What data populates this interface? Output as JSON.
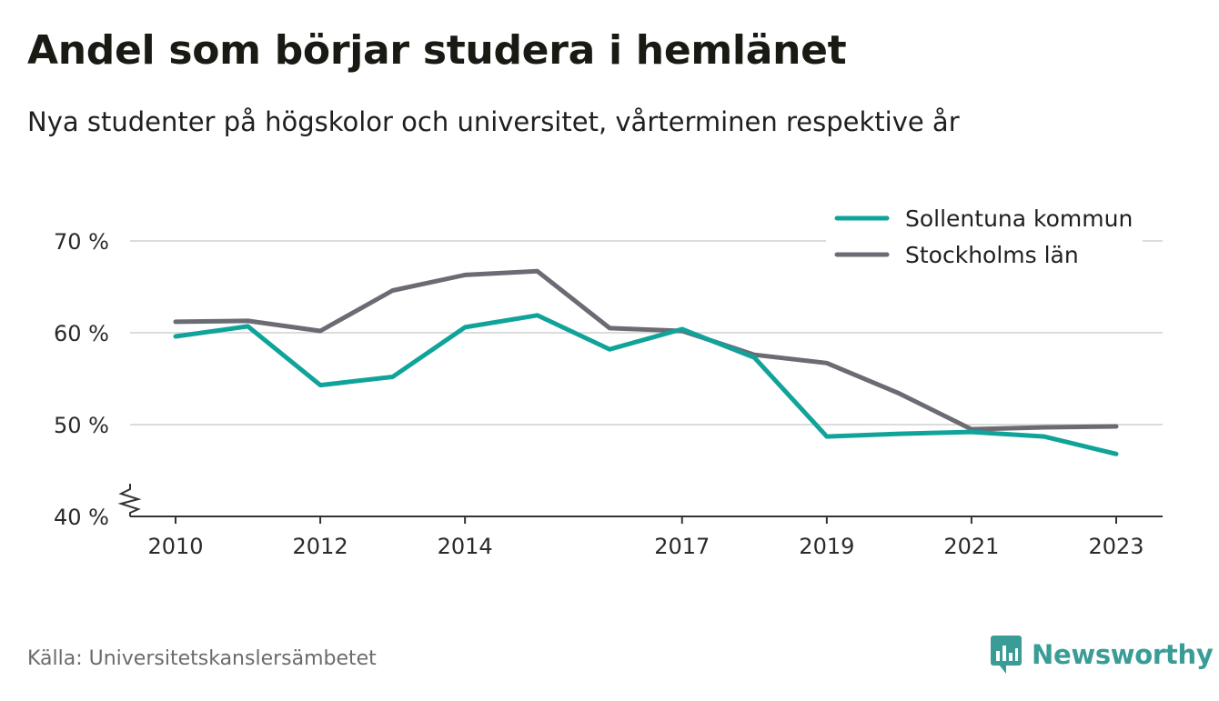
{
  "header": {
    "title": "Andel som börjar studera i hemlänet",
    "subtitle": "Nya studenter på högskolor och universitet, vårterminen respektive år"
  },
  "footer": {
    "source": "Källa: Universitetskanslersämbetet",
    "brand": "Newsworthy"
  },
  "colors": {
    "sollentuna": "#10a39a",
    "stockholm": "#6b6b73",
    "grid": "#dcdcdc",
    "axis": "#333333",
    "brand": "#3a9c96"
  },
  "chart_data": {
    "type": "line",
    "x": [
      2010,
      2011,
      2012,
      2013,
      2014,
      2015,
      2016,
      2017,
      2018,
      2019,
      2020,
      2021,
      2022,
      2023
    ],
    "xticks": [
      2010,
      2012,
      2014,
      2017,
      2019,
      2021,
      2023
    ],
    "xtick_labels": [
      "2010",
      "2012",
      "2014",
      "2017",
      "2019",
      "2021",
      "2023"
    ],
    "yticks": [
      40,
      50,
      60,
      70
    ],
    "ytick_labels": [
      "40 %",
      "50 %",
      "60 %",
      "70 %"
    ],
    "ylim": [
      40,
      70
    ],
    "y_axis_break": true,
    "grid": "horizontal",
    "legend_position": "top-right",
    "series": [
      {
        "name": "Sollentuna kommun",
        "color": "#10a39a",
        "values": [
          59.6,
          60.7,
          54.3,
          55.2,
          60.6,
          61.9,
          58.2,
          60.4,
          57.3,
          48.7,
          49.0,
          49.2,
          48.7,
          46.8
        ]
      },
      {
        "name": "Stockholms län",
        "color": "#6b6b73",
        "values": [
          61.2,
          61.3,
          60.2,
          64.6,
          66.3,
          66.7,
          60.5,
          60.2,
          57.6,
          56.7,
          53.4,
          49.5,
          49.7,
          49.8
        ]
      }
    ]
  }
}
